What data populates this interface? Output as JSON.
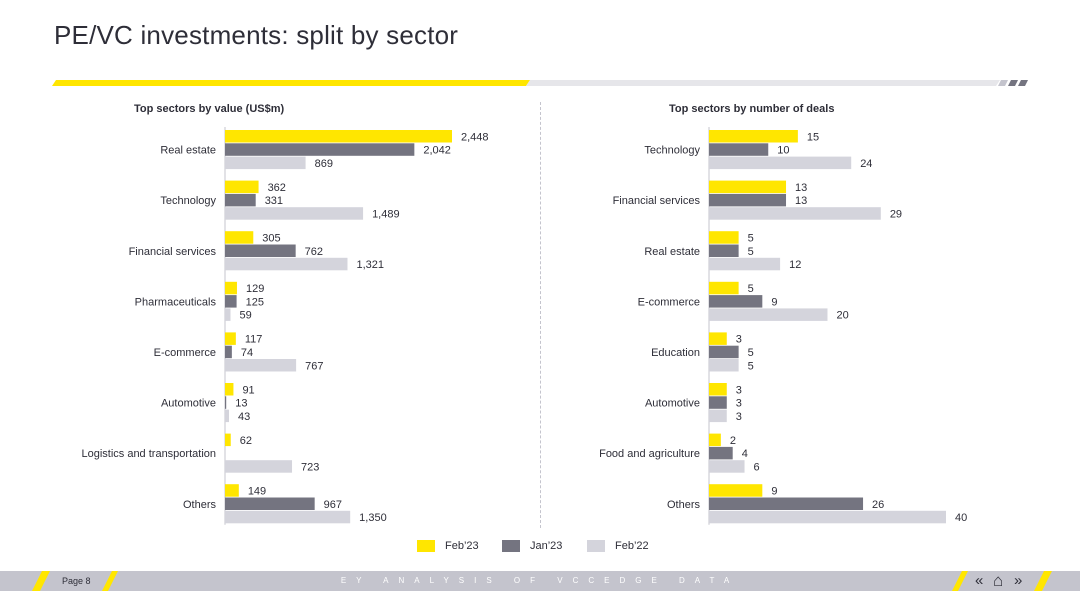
{
  "page": {
    "title": "PE/VC investments: split by sector",
    "page_label": "Page 8",
    "footer_text": "EY ANALYSIS OF VCCEDGE DATA",
    "nav": {
      "back": "«",
      "home": "⌂",
      "forward": "»"
    }
  },
  "colors": {
    "feb23": "#ffe600",
    "jan23": "#747480",
    "feb22": "#d4d4dc",
    "text": "#2e2e38"
  },
  "legend": [
    {
      "label": "Feb’23",
      "color": "#ffe600"
    },
    {
      "label": "Jan’23",
      "color": "#747480"
    },
    {
      "label": "Feb’22",
      "color": "#d4d4dc"
    }
  ],
  "chart_data": [
    {
      "type": "bar",
      "orientation": "horizontal",
      "title": "Top sectors by value (US$m)",
      "categories": [
        "Real estate",
        "Technology",
        "Financial services",
        "Pharmaceuticals",
        "E-commerce",
        "Automotive",
        "Logistics and transportation",
        "Others"
      ],
      "series": [
        {
          "name": "Feb’23",
          "values": [
            2448,
            362,
            305,
            129,
            117,
            91,
            62,
            149
          ],
          "labels": [
            "2,448",
            "362",
            "305",
            "129",
            "117",
            "91",
            "62",
            "149"
          ]
        },
        {
          "name": "Jan’23",
          "values": [
            2042,
            331,
            762,
            125,
            74,
            13,
            null,
            967
          ],
          "labels": [
            "2,042",
            "331",
            "762",
            "125",
            "74",
            "13",
            "",
            "967"
          ]
        },
        {
          "name": "Feb’22",
          "values": [
            869,
            1489,
            1321,
            59,
            767,
            43,
            723,
            1350
          ],
          "labels": [
            "869",
            "1,489",
            "1,321",
            "59",
            "767",
            "43",
            "723",
            "1,350"
          ]
        }
      ],
      "xlim": [
        0,
        2448
      ]
    },
    {
      "type": "bar",
      "orientation": "horizontal",
      "title": "Top sectors by number of deals",
      "categories": [
        "Technology",
        "Financial services",
        "Real estate",
        "E-commerce",
        "Education",
        "Automotive",
        "Food and agriculture",
        "Others"
      ],
      "series": [
        {
          "name": "Feb’23",
          "values": [
            15,
            13,
            5,
            5,
            3,
            3,
            2,
            9
          ],
          "labels": [
            "15",
            "13",
            "5",
            "5",
            "3",
            "3",
            "2",
            "9"
          ]
        },
        {
          "name": "Jan’23",
          "values": [
            10,
            13,
            5,
            9,
            5,
            3,
            4,
            26
          ],
          "labels": [
            "10",
            "13",
            "5",
            "9",
            "5",
            "3",
            "4",
            "26"
          ]
        },
        {
          "name": "Feb’22",
          "values": [
            24,
            29,
            12,
            20,
            5,
            3,
            6,
            40
          ],
          "labels": [
            "24",
            "29",
            "12",
            "20",
            "5",
            "3",
            "6",
            "40"
          ]
        }
      ],
      "xlim": [
        0,
        40
      ]
    }
  ]
}
